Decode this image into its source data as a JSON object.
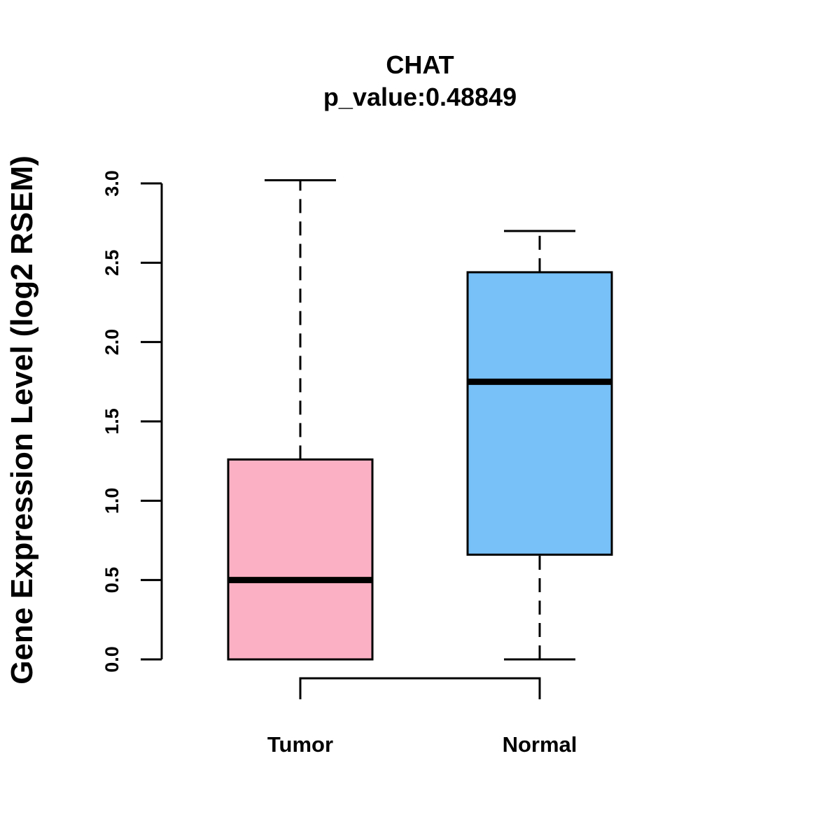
{
  "chart_data": {
    "type": "boxplot",
    "title": "CHAT",
    "subtitle": "p_value:0.48849",
    "xlabel": "",
    "ylabel": "Gene Expression Level (log2 RSEM)",
    "ylim": [
      0,
      3.0
    ],
    "yticks": [
      0.0,
      0.5,
      1.0,
      1.5,
      2.0,
      2.5,
      3.0
    ],
    "ytick_labels": [
      "0.0",
      "0.5",
      "1.0",
      "1.5",
      "2.0",
      "2.5",
      "3.0"
    ],
    "grid": false,
    "groups": [
      {
        "name": "Tumor",
        "color": "#FBB1C3",
        "min": 0.0,
        "q1": 0.0,
        "median": 0.5,
        "q3": 1.26,
        "max": 3.02
      },
      {
        "name": "Normal",
        "color": "#77C0F8",
        "min": 0.0,
        "q1": 0.66,
        "median": 1.75,
        "q3": 2.44,
        "max": 2.7
      }
    ],
    "comparison_bracket": [
      "Tumor",
      "Normal"
    ]
  }
}
